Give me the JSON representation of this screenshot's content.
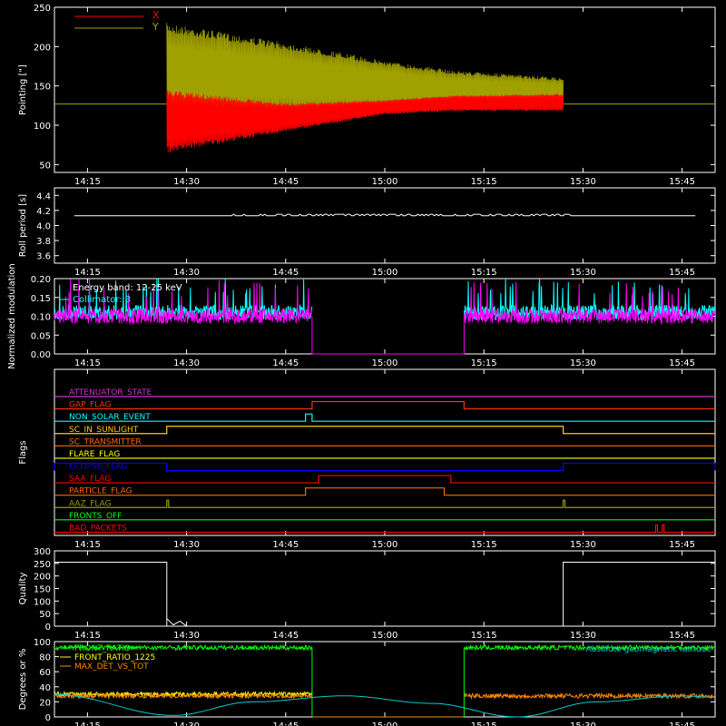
{
  "x_ticks": [
    "14:15",
    "14:30",
    "14:45",
    "15:00",
    "15:15",
    "15:30",
    "15:45"
  ],
  "chart_data": [
    {
      "type": "line",
      "ylabel": "Pointing [\"]",
      "ylim": [
        40,
        250
      ],
      "yticks": [
        50,
        100,
        150,
        200,
        250
      ],
      "legend": [
        {
          "name": "X",
          "color": "#ff0000"
        },
        {
          "name": "Y",
          "color": "#a0a000"
        }
      ],
      "series": [
        {
          "name": "X",
          "color": "#ff0000",
          "baseline": 127,
          "active": [
            "14:27",
            "15:27"
          ],
          "envelope": [
            [
              "14:27",
              145,
              65
            ],
            [
              "14:45",
              128,
              92
            ],
            [
              "15:00",
              132,
              114
            ],
            [
              "15:10",
              138,
              118
            ],
            [
              "15:27",
              140,
              118
            ]
          ]
        },
        {
          "name": "Y",
          "color": "#a0a000",
          "baseline": 127,
          "active": [
            "14:27",
            "15:27"
          ],
          "envelope": [
            [
              "14:27",
              230,
              108
            ],
            [
              "14:45",
              205,
              115
            ],
            [
              "15:00",
              182,
              120
            ],
            [
              "15:10",
              170,
              120
            ],
            [
              "15:27",
              160,
              122
            ]
          ]
        }
      ]
    },
    {
      "type": "line",
      "ylabel": "Roll period [s]",
      "ylim": [
        3.5,
        4.5
      ],
      "yticks": [
        "3.6",
        "3.8",
        "4.0",
        "4.2",
        "4.4"
      ],
      "series": [
        {
          "name": "",
          "color": "#ffffff",
          "value": 4.13
        }
      ]
    },
    {
      "type": "line",
      "ylabel": "Normalized modulation",
      "ylim": [
        0,
        0.2
      ],
      "yticks": [
        "0.00",
        "0.05",
        "0.10",
        "0.15",
        "0.20"
      ],
      "annotations": [
        "Energy band: 12-25 keV",
        "Collimator: 3"
      ],
      "series": [
        {
          "name": "",
          "color": "#00ffff",
          "mean": 0.11,
          "segments": [
            [
              "14:10",
              "14:49"
            ],
            [
              "15:12",
              "15:50"
            ]
          ]
        },
        {
          "name": "",
          "color": "#ff00ff",
          "mean": 0.1,
          "segments": [
            [
              "14:10",
              "14:49"
            ],
            [
              "15:12",
              "15:50"
            ]
          ]
        }
      ]
    },
    {
      "type": "line",
      "ylabel": "Flags",
      "flags": [
        {
          "name": "ATTENUATOR_STATE",
          "color": "#cc33cc",
          "high": []
        },
        {
          "name": "GAP_FLAG",
          "color": "#ff3300",
          "high": [
            [
              "14:49",
              "15:12"
            ]
          ]
        },
        {
          "name": "NON_SOLAR_EVENT",
          "color": "#00ffff",
          "high": [
            [
              "14:48",
              "14:49"
            ]
          ]
        },
        {
          "name": "SC_IN_SUNLIGHT",
          "color": "#ffcc00",
          "high": [
            [
              "14:27",
              "15:27"
            ]
          ]
        },
        {
          "name": "SC_TRANSMITTER",
          "color": "#ff6600",
          "high": []
        },
        {
          "name": "FLARE_FLAG",
          "color": "#ffff00",
          "high": []
        },
        {
          "name": "ECLIPSE_FLAG",
          "color": "#0000ff",
          "high": [
            [
              "14:10",
              "14:27"
            ],
            [
              "15:27",
              "15:50"
            ]
          ]
        },
        {
          "name": "SAA_FLAG",
          "color": "#ff0000",
          "high": [
            [
              "14:50",
              "15:10"
            ]
          ]
        },
        {
          "name": "PARTICLE_FLAG",
          "color": "#ff6600",
          "high": [
            [
              "14:48",
              "15:09"
            ]
          ]
        },
        {
          "name": "AAZ_FLAG",
          "color": "#999900",
          "high": [
            [
              "14:27",
              "14:27"
            ],
            [
              "15:27",
              "15:27"
            ]
          ]
        },
        {
          "name": "FRONTS_OFF",
          "color": "#00ff00",
          "high": []
        },
        {
          "name": "BAD_PACKETS",
          "color": "#ff0000",
          "high": [
            [
              "15:41",
              "15:41"
            ],
            [
              "15:42",
              "15:42"
            ]
          ]
        }
      ]
    },
    {
      "type": "line",
      "ylabel": "Quality",
      "ylim": [
        0,
        300
      ],
      "yticks": [
        0,
        50,
        100,
        150,
        200,
        250,
        300
      ],
      "series": [
        {
          "name": "",
          "color": "#ffffff",
          "points": [
            [
              "14:10",
              255
            ],
            [
              "14:27",
              255
            ],
            [
              "14:27",
              0
            ],
            [
              "14:27",
              30
            ],
            [
              "14:28",
              5
            ],
            [
              "14:29",
              20
            ],
            [
              "14:30",
              0
            ],
            [
              "15:27",
              0
            ],
            [
              "15:27",
              255
            ],
            [
              "15:50",
              255
            ]
          ]
        }
      ]
    },
    {
      "type": "line",
      "ylabel": "Degrees or %",
      "ylim": [
        0,
        100
      ],
      "yticks": [
        0,
        20,
        40,
        60,
        80,
        100
      ],
      "legend": [
        {
          "name": "FRONT_RATIO",
          "color": "#00ff00"
        },
        {
          "name": "FRONT_RATIO_1225",
          "color": "#ffff00"
        },
        {
          "name": "MAX_DET_VS_TOT",
          "color": "#ff8800"
        }
      ],
      "annotation": "Absolute geomagnetic latitude",
      "series": [
        {
          "name": "FRONT_RATIO",
          "color": "#00ff00",
          "mean": 92,
          "segments": [
            [
              "14:10",
              "14:49"
            ],
            [
              "15:12",
              "15:50"
            ]
          ]
        },
        {
          "name": "FRONT_RATIO_1225",
          "color": "#ffff00",
          "mean": 30,
          "segments": [
            [
              "14:10",
              "14:49"
            ]
          ]
        },
        {
          "name": "MAX_DET_VS_TOT",
          "color": "#ff8800",
          "mean": 28,
          "segments": [
            [
              "14:10",
              "14:49"
            ],
            [
              "15:12",
              "15:50"
            ]
          ]
        },
        {
          "name": "Absolute geomagnetic latitude",
          "color": "#00cccc",
          "points": [
            [
              "14:10",
              30
            ],
            [
              "14:28",
              2
            ],
            [
              "14:40",
              20
            ],
            [
              "14:54",
              28
            ],
            [
              "15:07",
              18
            ],
            [
              "15:20",
              0
            ],
            [
              "15:32",
              20
            ],
            [
              "15:45",
              28
            ],
            [
              "15:50",
              26
            ]
          ]
        }
      ]
    }
  ]
}
